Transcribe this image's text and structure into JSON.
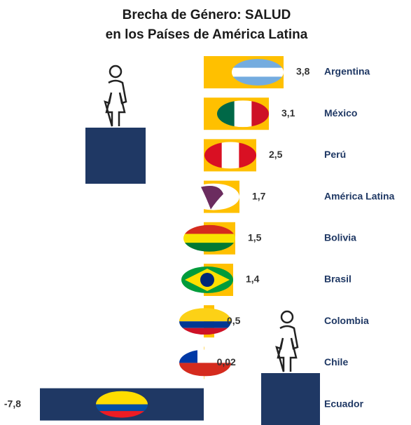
{
  "chart_data": {
    "type": "bar",
    "orientation": "horizontal",
    "title": "Brecha de Género: SALUD",
    "subtitle": "en los Países de América Latina",
    "categories": [
      "Argentina",
      "México",
      "Perú",
      "América Latina",
      "Bolivia",
      "Brasil",
      "Colombia",
      "Chile",
      "Ecuador"
    ],
    "values": [
      3.8,
      3.1,
      2.5,
      1.7,
      1.5,
      1.4,
      0.5,
      0.02,
      -7.8
    ],
    "value_labels": [
      "3,8",
      "3,1",
      "2,5",
      "1,7",
      "1,5",
      "1,4",
      "0,5",
      "0,02",
      "-7,8"
    ],
    "color": "#FFC000",
    "negative_color": "#1F3864",
    "xlim": [
      -9.7,
      9.7
    ]
  }
}
